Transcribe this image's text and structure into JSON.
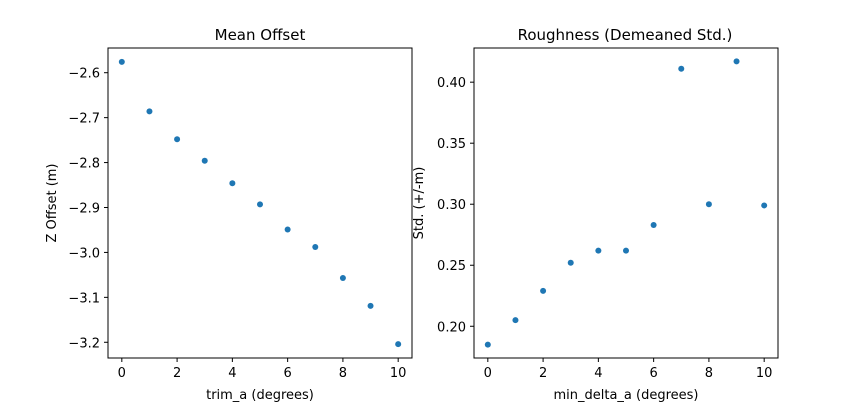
{
  "chart_data": [
    {
      "type": "scatter",
      "title": "Mean Offset",
      "xlabel": "trim_a (degrees)",
      "ylabel": "Z Offset (m)",
      "xlim": [
        -0.5,
        10.5
      ],
      "ylim": [
        -3.235,
        -2.545
      ],
      "xticks": [
        0,
        2,
        4,
        6,
        8,
        10
      ],
      "xtick_labels": [
        "0",
        "2",
        "4",
        "6",
        "8",
        "10"
      ],
      "yticks": [
        -2.6,
        -2.7,
        -2.8,
        -2.9,
        -3.0,
        -3.1,
        -3.2
      ],
      "ytick_labels": [
        "−2.6",
        "−2.7",
        "−2.8",
        "−2.9",
        "−3.0",
        "−3.1",
        "−3.2"
      ],
      "x": [
        0,
        1,
        2,
        3,
        4,
        5,
        6,
        7,
        8,
        9,
        10
      ],
      "y": [
        -2.576,
        -2.686,
        -2.748,
        -2.796,
        -2.846,
        -2.893,
        -2.949,
        -2.988,
        -3.057,
        -3.119,
        -3.204
      ],
      "color": "#1f77b4",
      "grid": false
    },
    {
      "type": "scatter",
      "title": "Roughness (Demeaned Std.)",
      "xlabel": "min_delta_a (degrees)",
      "ylabel": "Std. (+/-m)",
      "xlim": [
        -0.5,
        10.5
      ],
      "ylim": [
        0.174,
        0.428
      ],
      "xticks": [
        0,
        2,
        4,
        6,
        8,
        10
      ],
      "xtick_labels": [
        "0",
        "2",
        "4",
        "6",
        "8",
        "10"
      ],
      "yticks": [
        0.4,
        0.35,
        0.3,
        0.25,
        0.2
      ],
      "ytick_labels": [
        "0.40",
        "0.35",
        "0.30",
        "0.25",
        "0.20"
      ],
      "x": [
        0,
        1,
        2,
        3,
        4,
        5,
        6,
        7,
        8,
        9,
        10
      ],
      "y": [
        0.185,
        0.205,
        0.229,
        0.252,
        0.262,
        0.262,
        0.283,
        0.411,
        0.3,
        0.417,
        0.299
      ],
      "color": "#1f77b4",
      "grid": false
    }
  ]
}
